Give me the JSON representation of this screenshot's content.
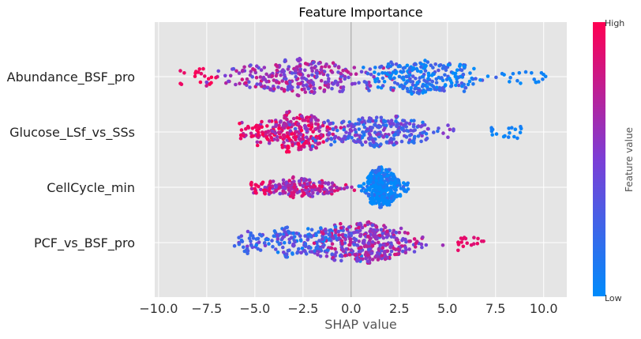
{
  "chart_data": {
    "type": "scatter",
    "title": "Feature Importance",
    "xlabel": "SHAP value",
    "ylabel": "",
    "xlim": [
      -10.2,
      11.2
    ],
    "xticks": [
      -10.0,
      -7.5,
      -5.0,
      -2.5,
      0.0,
      2.5,
      5.0,
      7.5,
      10.0
    ],
    "xtick_labels": [
      "−10.0",
      "−7.5",
      "−5.0",
      "−2.5",
      "0.0",
      "2.5",
      "5.0",
      "7.5",
      "10.0"
    ],
    "grid": true,
    "background": "#e5e5e5",
    "features": [
      {
        "name": "Abundance_BSF_pro",
        "shap_range": [
          -9.0,
          10.1
        ],
        "modes": [
          {
            "center": -2.9,
            "spread": 1.9,
            "weight": 0.55,
            "feature_value_mean": 0.6
          },
          {
            "center": 3.8,
            "spread": 1.4,
            "weight": 0.45,
            "feature_value_mean": 0.12
          }
        ]
      },
      {
        "name": "Glucose_LSf_vs_SSs",
        "shap_range": [
          -5.8,
          9.0
        ],
        "modes": [
          {
            "center": -3.0,
            "spread": 1.1,
            "weight": 0.5,
            "feature_value_mean": 0.8
          },
          {
            "center": 1.5,
            "spread": 1.6,
            "weight": 0.5,
            "feature_value_mean": 0.35
          }
        ]
      },
      {
        "name": "CellCycle_min",
        "shap_range": [
          -5.2,
          3.0
        ],
        "modes": [
          {
            "center": -2.6,
            "spread": 1.1,
            "weight": 0.35,
            "feature_value_mean": 0.7
          },
          {
            "center": 1.6,
            "spread": 0.45,
            "weight": 0.65,
            "feature_value_mean": 0.0
          }
        ]
      },
      {
        "name": "PCF_vs_BSF_pro",
        "shap_range": [
          -6.1,
          7.0
        ],
        "modes": [
          {
            "center": 0.8,
            "spread": 1.2,
            "weight": 0.6,
            "feature_value_mean": 0.6
          },
          {
            "center": -2.5,
            "spread": 1.6,
            "weight": 0.4,
            "feature_value_mean": 0.3
          }
        ]
      }
    ],
    "colorbar": {
      "label": "Feature value",
      "high_label": "High",
      "low_label": "Low",
      "high_color": "#ff0052",
      "mid_color": "#7c3ed6",
      "low_color": "#008bfb"
    },
    "zero_line": true
  }
}
